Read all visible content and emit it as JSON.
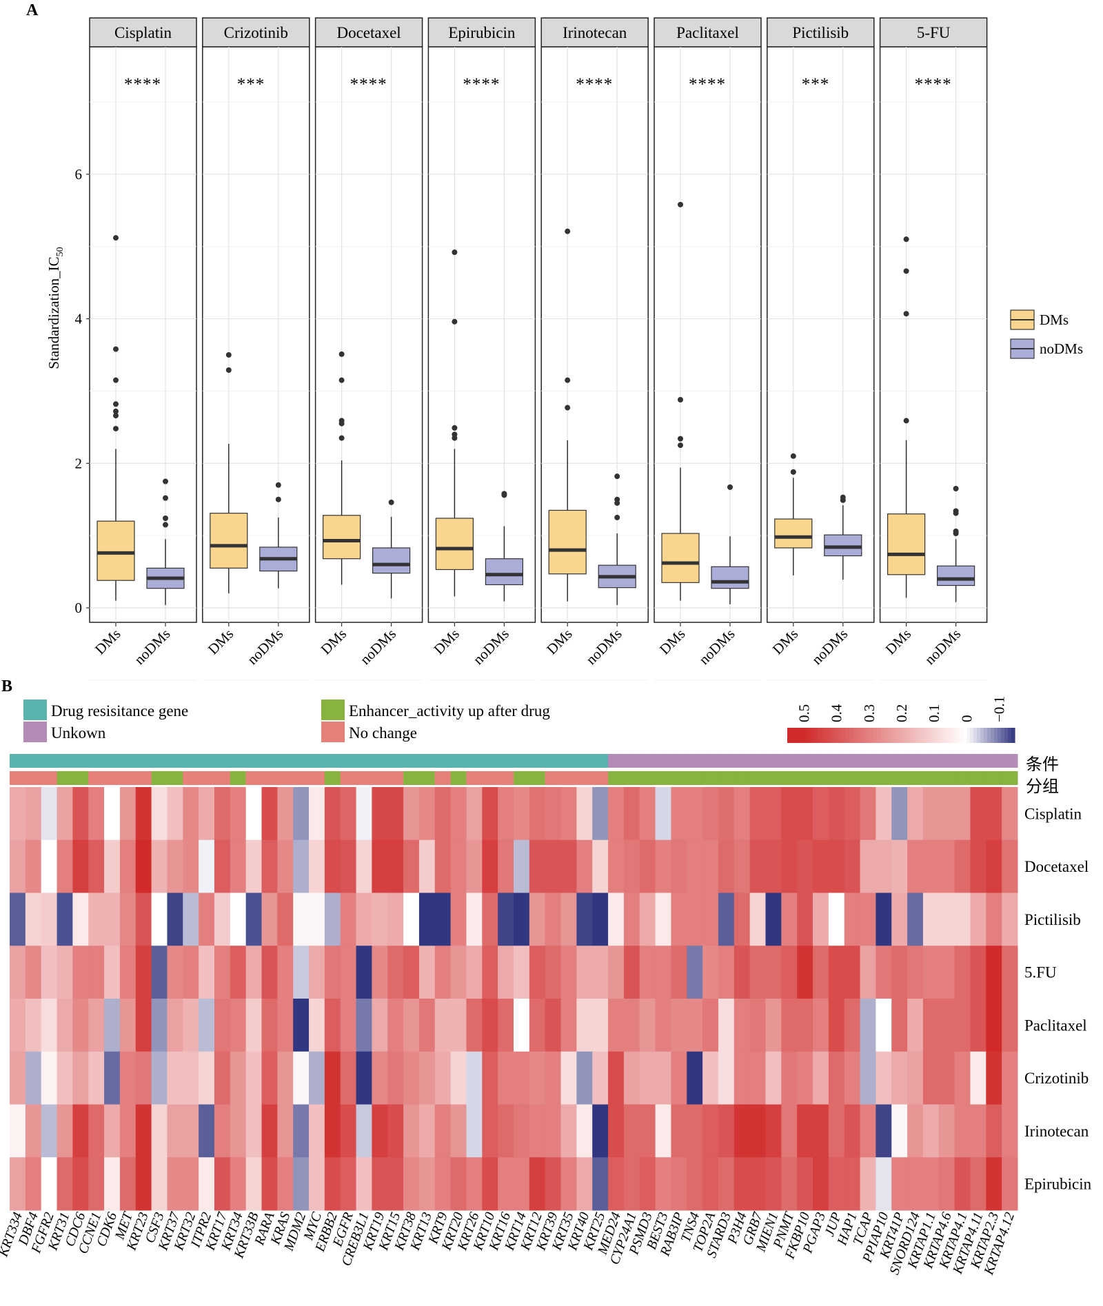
{
  "panel_a_label": "A",
  "panel_b_label": "B",
  "chart_data": [
    {
      "type": "boxplot",
      "panel": "A",
      "ylabel_main": "Standardization_IC",
      "ylabel_sub": "50",
      "ylim": [
        -0.2,
        7.6
      ],
      "yticks": [
        0,
        2,
        4,
        6
      ],
      "groups": [
        "DMs",
        "noDMs"
      ],
      "legend": {
        "position": "right",
        "entries": [
          {
            "name": "DMs",
            "color": "#f9d58e"
          },
          {
            "name": "noDMs",
            "color": "#a9add8"
          }
        ]
      },
      "facets": [
        {
          "drug": "Cisplatin",
          "sig": "****",
          "DMs": {
            "q1": 0.38,
            "median": 0.76,
            "q3": 1.2,
            "lo": 0.1,
            "hi": 2.2,
            "outliers": [
              5.12,
              3.58,
              3.15,
              2.82,
              2.72,
              2.66,
              2.48
            ]
          },
          "noDMs": {
            "q1": 0.27,
            "median": 0.41,
            "q3": 0.55,
            "lo": 0.04,
            "hi": 0.95,
            "outliers": [
              1.75,
              1.52,
              1.24,
              1.15
            ]
          }
        },
        {
          "drug": "Crizotinib",
          "sig": "***",
          "DMs": {
            "q1": 0.55,
            "median": 0.86,
            "q3": 1.31,
            "lo": 0.2,
            "hi": 2.27,
            "outliers": [
              3.5,
              3.29
            ]
          },
          "noDMs": {
            "q1": 0.51,
            "median": 0.68,
            "q3": 0.84,
            "lo": 0.27,
            "hi": 1.25,
            "outliers": [
              1.7,
              1.5
            ]
          }
        },
        {
          "drug": "Docetaxel",
          "sig": "****",
          "DMs": {
            "q1": 0.68,
            "median": 0.93,
            "q3": 1.28,
            "lo": 0.32,
            "hi": 2.04,
            "outliers": [
              3.51,
              3.15,
              2.59,
              2.55,
              2.35
            ]
          },
          "noDMs": {
            "q1": 0.48,
            "median": 0.6,
            "q3": 0.83,
            "lo": 0.13,
            "hi": 1.26,
            "outliers": [
              1.46
            ]
          }
        },
        {
          "drug": "Epirubicin",
          "sig": "****",
          "DMs": {
            "q1": 0.53,
            "median": 0.82,
            "q3": 1.24,
            "lo": 0.16,
            "hi": 2.2,
            "outliers": [
              4.92,
              3.96,
              2.49,
              2.4,
              2.35
            ]
          },
          "noDMs": {
            "q1": 0.32,
            "median": 0.46,
            "q3": 0.68,
            "lo": 0.09,
            "hi": 1.13,
            "outliers": [
              1.58,
              1.56
            ]
          }
        },
        {
          "drug": "Irinotecan",
          "sig": "****",
          "DMs": {
            "q1": 0.47,
            "median": 0.8,
            "q3": 1.35,
            "lo": 0.09,
            "hi": 2.32,
            "outliers": [
              5.21,
              3.15,
              2.77
            ]
          },
          "noDMs": {
            "q1": 0.28,
            "median": 0.43,
            "q3": 0.59,
            "lo": 0.04,
            "hi": 1.03,
            "outliers": [
              1.82,
              1.5,
              1.45,
              1.25
            ]
          }
        },
        {
          "drug": "Paclitaxel",
          "sig": "****",
          "DMs": {
            "q1": 0.35,
            "median": 0.62,
            "q3": 1.03,
            "lo": 0.1,
            "hi": 1.94,
            "outliers": [
              5.58,
              2.88,
              2.34,
              2.25
            ]
          },
          "noDMs": {
            "q1": 0.27,
            "median": 0.36,
            "q3": 0.57,
            "lo": 0.05,
            "hi": 0.99,
            "outliers": [
              1.67
            ]
          }
        },
        {
          "drug": "Pictilisib",
          "sig": "***",
          "DMs": {
            "q1": 0.83,
            "median": 0.98,
            "q3": 1.23,
            "lo": 0.45,
            "hi": 1.8,
            "outliers": [
              2.1,
              1.88
            ]
          },
          "noDMs": {
            "q1": 0.72,
            "median": 0.84,
            "q3": 1.01,
            "lo": 0.39,
            "hi": 1.42,
            "outliers": [
              1.53,
              1.49
            ]
          }
        },
        {
          "drug": "5-FU",
          "sig": "****",
          "DMs": {
            "q1": 0.46,
            "median": 0.74,
            "q3": 1.3,
            "lo": 0.14,
            "hi": 2.32,
            "outliers": [
              5.1,
              4.66,
              4.07,
              2.59
            ]
          },
          "noDMs": {
            "q1": 0.31,
            "median": 0.4,
            "q3": 0.58,
            "lo": 0.08,
            "hi": 0.95,
            "outliers": [
              1.65,
              1.34,
              1.31,
              1.06,
              1.03
            ]
          }
        }
      ]
    },
    {
      "type": "heatmap",
      "panel": "B",
      "annotation_legend": [
        {
          "label": "Drug resisitance gene",
          "color": "#5ab3ac"
        },
        {
          "label": "Unkown",
          "color": "#b48ab6"
        },
        {
          "label": "Enhancer_activity up after drug",
          "color": "#88b340"
        },
        {
          "label": "No change",
          "color": "#e8807a"
        }
      ],
      "colorbar_ticks": [
        "0.5",
        "0.4",
        "0.3",
        "0.2",
        "0.1",
        "0",
        "−0.1"
      ],
      "row_annotation_labels": [
        "条件",
        "分组"
      ],
      "rows": [
        "Cisplatin",
        "Docetaxel",
        "Pictilisib",
        "5.FU",
        "Paclitaxel",
        "Crizotinib",
        "Irinotecan",
        "Epirubicin"
      ],
      "genes": [
        "KRT334",
        "DBF4",
        "FGFR2",
        "KRT31",
        "CDC6",
        "CCNE1",
        "CDK6",
        "MET",
        "KRT23",
        "CSF3",
        "KRT37",
        "KRT32",
        "ITPR2",
        "KRT17",
        "KRT34",
        "KRT33B",
        "RARA",
        "KRAS",
        "MDM2",
        "MYC",
        "ERBB2",
        "EGFR",
        "CREB3L1",
        "KRT19",
        "KRT15",
        "KRT38",
        "KRT13",
        "KRT9",
        "KRT20",
        "KRT26",
        "KRT10",
        "KRT16",
        "KRT14",
        "KRT12",
        "KRT39",
        "KRT35",
        "KRT40",
        "KRT25",
        "MED24",
        "CYP24A1",
        "PSMD3",
        "BEST3",
        "RAB3IP",
        "TNS4",
        "TOP2A",
        "STARD3",
        "P3H4",
        "GRB7",
        "MIEN1",
        "PNMT",
        "FKBP10",
        "PGAP3",
        "JUP",
        "HAP1",
        "TCAP",
        "PPIAP10",
        "KRT41P",
        "SNORD124",
        "KRTAP1.1",
        "KRTAP4.6",
        "KRTAP4.1",
        "KRTAP4.11",
        "KRTAP2.3",
        "KRTAP4.12"
      ],
      "category": [
        "D",
        "D",
        "D",
        "D",
        "D",
        "D",
        "D",
        "D",
        "D",
        "D",
        "D",
        "D",
        "D",
        "D",
        "D",
        "D",
        "D",
        "D",
        "D",
        "D",
        "D",
        "D",
        "D",
        "D",
        "D",
        "D",
        "D",
        "D",
        "D",
        "D",
        "D",
        "D",
        "D",
        "D",
        "D",
        "D",
        "D",
        "D",
        "U",
        "U",
        "U",
        "U",
        "U",
        "U",
        "U",
        "U",
        "U",
        "U",
        "U",
        "U",
        "U",
        "U",
        "U",
        "U",
        "U",
        "U",
        "U",
        "U",
        "U",
        "U",
        "U",
        "U",
        "U",
        "U"
      ],
      "group": [
        "N",
        "N",
        "N",
        "E",
        "E",
        "N",
        "N",
        "N",
        "N",
        "E",
        "E",
        "N",
        "N",
        "N",
        "E",
        "N",
        "N",
        "N",
        "N",
        "N",
        "E",
        "N",
        "N",
        "N",
        "N",
        "E",
        "E",
        "N",
        "E",
        "N",
        "N",
        "N",
        "E",
        "E",
        "N",
        "N",
        "N",
        "N",
        "E",
        "E",
        "E",
        "E",
        "E",
        "E",
        "E",
        "E",
        "E",
        "E",
        "E",
        "E",
        "E",
        "E",
        "E",
        "E",
        "E",
        "E",
        "E",
        "E",
        "E",
        "E",
        "E",
        "E",
        "E",
        "E"
      ],
      "values": [
        [
          0.2,
          0.22,
          -0.02,
          0.22,
          0.4,
          0.3,
          0.0,
          0.25,
          0.48,
          0.08,
          0.15,
          0.28,
          0.2,
          0.35,
          0.3,
          0.0,
          0.42,
          0.25,
          -0.08,
          0.05,
          0.4,
          0.36,
          -0.01,
          0.43,
          0.43,
          0.25,
          0.28,
          0.35,
          0.3,
          0.22,
          0.42,
          0.3,
          0.28,
          0.33,
          0.32,
          0.3,
          0.1,
          -0.08,
          0.3,
          0.35,
          0.3,
          -0.03,
          0.3,
          0.3,
          0.32,
          0.34,
          0.3,
          0.38,
          0.38,
          0.42,
          0.42,
          0.38,
          0.4,
          0.38,
          0.32,
          0.15,
          -0.08,
          0.2,
          0.25,
          0.25,
          0.25,
          0.42,
          0.42,
          0.28
        ],
        [
          0.22,
          0.28,
          0.0,
          0.3,
          0.45,
          0.38,
          0.12,
          0.3,
          0.52,
          0.18,
          0.25,
          0.28,
          -0.01,
          0.38,
          0.3,
          0.12,
          0.38,
          0.28,
          -0.06,
          0.1,
          0.42,
          0.4,
          0.1,
          0.45,
          0.45,
          0.35,
          0.12,
          0.35,
          0.3,
          0.25,
          0.45,
          0.32,
          -0.05,
          0.4,
          0.4,
          0.4,
          0.3,
          0.1,
          0.3,
          0.32,
          0.35,
          0.3,
          0.32,
          0.3,
          0.3,
          0.35,
          0.32,
          0.4,
          0.4,
          0.42,
          0.4,
          0.42,
          0.42,
          0.4,
          0.2,
          0.2,
          0.18,
          0.3,
          0.3,
          0.3,
          0.35,
          0.42,
          0.45,
          0.33
        ],
        [
          -0.12,
          0.1,
          0.12,
          -0.13,
          0.05,
          0.18,
          0.18,
          0.28,
          0.4,
          0.0,
          -0.14,
          -0.05,
          0.3,
          0.12,
          0.0,
          -0.13,
          0.25,
          0.35,
          0.02,
          0.02,
          -0.06,
          0.3,
          0.2,
          0.18,
          0.2,
          0.0,
          -0.16,
          -0.17,
          0.3,
          0.05,
          0.35,
          -0.14,
          -0.17,
          0.25,
          0.3,
          0.25,
          -0.14,
          -0.16,
          0.05,
          0.3,
          0.2,
          0.05,
          0.3,
          0.3,
          0.3,
          -0.12,
          0.35,
          0.1,
          -0.15,
          0.3,
          0.4,
          0.2,
          0.0,
          0.3,
          0.3,
          -0.17,
          0.2,
          -0.11,
          0.1,
          0.1,
          0.1,
          0.2,
          0.3,
          0.2
        ],
        [
          0.22,
          0.28,
          0.15,
          0.18,
          0.3,
          0.3,
          0.15,
          0.3,
          0.45,
          -0.12,
          0.28,
          0.3,
          0.15,
          0.3,
          0.38,
          0.2,
          0.4,
          0.3,
          -0.04,
          0.2,
          0.32,
          0.3,
          -0.15,
          0.28,
          0.35,
          0.38,
          0.18,
          0.3,
          0.25,
          0.2,
          0.38,
          0.2,
          0.15,
          0.38,
          0.35,
          0.3,
          0.2,
          0.2,
          0.25,
          0.4,
          0.3,
          0.3,
          0.35,
          -0.1,
          0.28,
          0.3,
          0.4,
          0.35,
          0.35,
          0.38,
          0.48,
          0.35,
          0.42,
          0.42,
          0.22,
          0.32,
          0.35,
          0.32,
          0.3,
          0.3,
          0.35,
          0.4,
          0.5,
          0.35
        ],
        [
          0.2,
          0.15,
          0.08,
          0.2,
          0.28,
          0.22,
          -0.06,
          0.25,
          0.45,
          -0.08,
          0.22,
          0.18,
          -0.05,
          0.32,
          0.3,
          0.12,
          0.35,
          0.3,
          -0.17,
          0.1,
          0.38,
          0.3,
          -0.1,
          0.2,
          0.3,
          0.25,
          0.32,
          0.18,
          0.18,
          0.35,
          0.42,
          0.35,
          0.0,
          0.35,
          0.4,
          0.3,
          0.1,
          0.1,
          0.3,
          0.3,
          0.25,
          0.3,
          0.28,
          0.28,
          0.32,
          0.08,
          0.3,
          0.32,
          0.25,
          0.35,
          0.35,
          0.3,
          0.42,
          0.35,
          -0.06,
          0.0,
          0.35,
          0.2,
          0.35,
          0.35,
          0.35,
          0.4,
          0.5,
          0.35
        ],
        [
          0.22,
          -0.06,
          0.03,
          0.15,
          0.22,
          0.15,
          -0.11,
          0.3,
          0.32,
          -0.06,
          0.15,
          0.15,
          0.1,
          0.35,
          0.25,
          0.15,
          0.38,
          0.25,
          0.02,
          -0.06,
          0.48,
          0.35,
          -0.19,
          0.28,
          0.32,
          0.28,
          0.25,
          0.2,
          0.1,
          -0.03,
          0.38,
          0.3,
          0.3,
          0.28,
          0.3,
          0.08,
          -0.08,
          0.15,
          0.42,
          0.22,
          0.2,
          0.2,
          0.3,
          -0.15,
          0.15,
          0.08,
          0.3,
          0.3,
          0.15,
          0.32,
          0.3,
          0.2,
          0.35,
          0.3,
          -0.06,
          0.15,
          0.2,
          0.22,
          0.35,
          0.35,
          0.3,
          0.05,
          0.48,
          0.3
        ],
        [
          0.03,
          0.25,
          -0.05,
          0.25,
          0.45,
          0.35,
          0.2,
          0.3,
          0.48,
          0.1,
          0.22,
          0.22,
          -0.12,
          0.3,
          0.25,
          0.15,
          0.45,
          0.25,
          -0.1,
          0.15,
          0.48,
          0.42,
          -0.04,
          0.45,
          0.42,
          0.25,
          0.2,
          0.3,
          0.25,
          -0.03,
          0.38,
          0.35,
          0.32,
          0.3,
          0.3,
          0.2,
          0.05,
          -0.17,
          0.42,
          0.35,
          0.35,
          0.05,
          0.35,
          0.35,
          0.38,
          0.4,
          0.48,
          0.48,
          0.45,
          0.32,
          0.45,
          0.45,
          0.35,
          0.4,
          0.3,
          -0.14,
          0.02,
          0.25,
          0.2,
          0.25,
          0.3,
          0.3,
          0.38,
          0.3
        ],
        [
          0.22,
          0.3,
          0.0,
          0.35,
          0.42,
          0.35,
          0.05,
          0.35,
          0.48,
          0.1,
          0.28,
          0.28,
          0.05,
          0.4,
          0.3,
          0.1,
          0.42,
          0.3,
          -0.08,
          0.15,
          0.42,
          0.38,
          0.15,
          0.4,
          0.4,
          0.28,
          0.25,
          0.3,
          0.35,
          0.3,
          0.42,
          0.3,
          0.3,
          0.45,
          0.4,
          0.3,
          0.2,
          -0.12,
          0.38,
          0.35,
          0.38,
          0.3,
          0.32,
          0.35,
          0.38,
          0.35,
          0.42,
          0.42,
          0.4,
          0.35,
          0.4,
          0.45,
          0.38,
          0.38,
          0.18,
          -0.02,
          0.3,
          0.3,
          0.3,
          0.32,
          0.4,
          0.35,
          0.48,
          0.32
        ]
      ]
    }
  ]
}
